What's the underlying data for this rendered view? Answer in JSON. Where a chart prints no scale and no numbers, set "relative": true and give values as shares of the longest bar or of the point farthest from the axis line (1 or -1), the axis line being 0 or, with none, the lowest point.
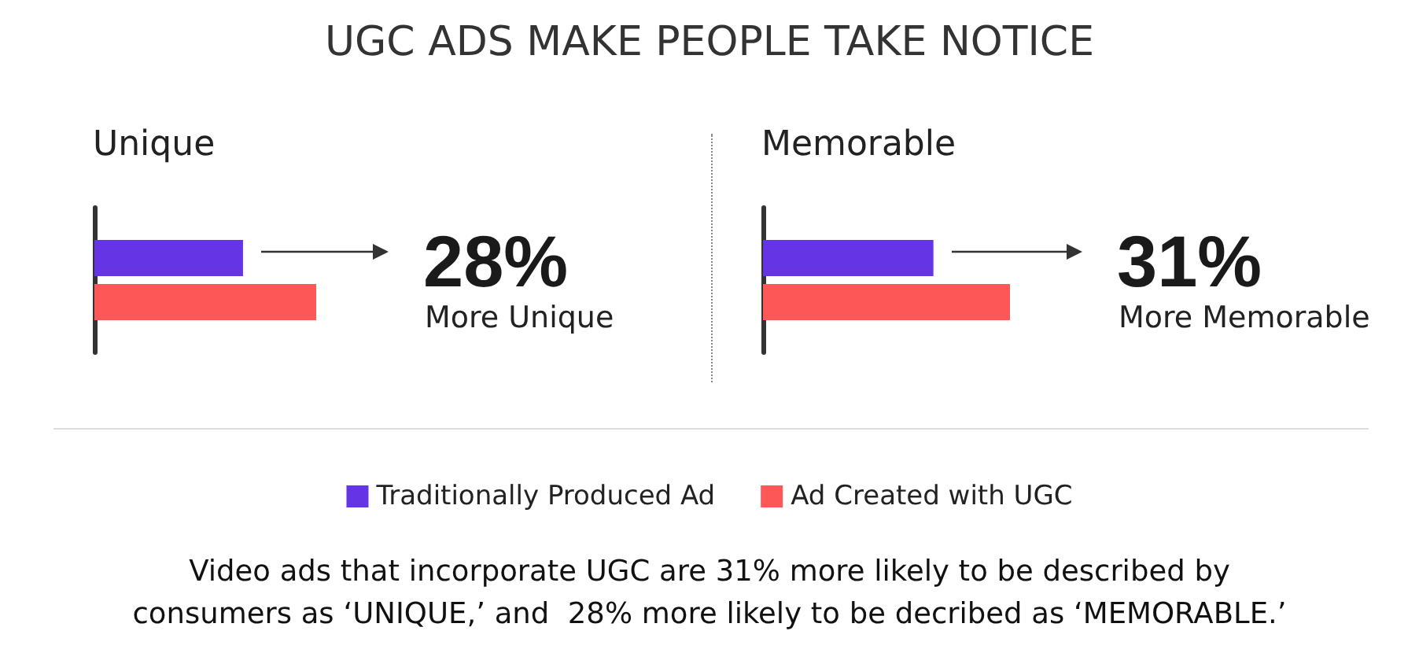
{
  "chart_data": [
    {
      "type": "bar",
      "title": "Unique",
      "orientation": "horizontal",
      "relative": true,
      "categories": [
        null
      ],
      "series": [
        {
          "name": "Traditionally Produced Ad",
          "color": "#6534e5",
          "values": [
            0.67
          ]
        },
        {
          "name": "Ad Created with UGC",
          "color": "#fe5757",
          "values": [
            1
          ]
        }
      ],
      "annotations": [
        "28%",
        "More Unique",
        "Video ads that incorporate UGC are 31% more likely to be described by consumers as ‘UNIQUE,’ and  28% more likely to be decribed as ‘MEMORABLE.’"
      ],
      "legend": "bottom"
    },
    {
      "type": "bar",
      "title": "UGC ADS MAKE PEOPLE TAKE NOTICE",
      "subtitle": "Memorable",
      "orientation": "horizontal",
      "relative": true,
      "categories": [
        null
      ],
      "series": [
        {
          "color": "#6534e5",
          "values": [
            0.69
          ]
        },
        {
          "color": "#fe5757",
          "values": [
            1
          ]
        }
      ],
      "annotations": [
        "31%",
        "More Memorable"
      ]
    }
  ]
}
